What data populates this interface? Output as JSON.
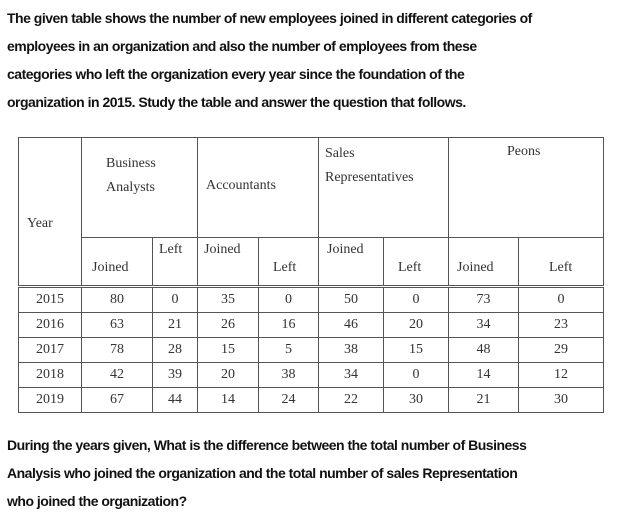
{
  "intro_lines": [
    "The given table shows the number of new employees joined in different categories of",
    "employees in an organization and also the number of employees from these",
    "categories who left the organization every year since the foundation of the",
    "organization in 2015. Study the table and answer the question that follows."
  ],
  "table": {
    "year_header": "Year",
    "groups": [
      "Business Analysts",
      "Accountants",
      "Sales Representatives",
      "Peons"
    ],
    "sub_headers": [
      "Joined",
      "Left",
      "Joined",
      "Left",
      "Joined",
      "Left",
      "Joined",
      "Left"
    ],
    "rows": [
      [
        "2015",
        "80",
        "0",
        "35",
        "0",
        "50",
        "0",
        "73",
        "0"
      ],
      [
        "2016",
        "63",
        "21",
        "26",
        "16",
        "46",
        "20",
        "34",
        "23"
      ],
      [
        "2017",
        "78",
        "28",
        "15",
        "5",
        "38",
        "15",
        "48",
        "29"
      ],
      [
        "2018",
        "42",
        "39",
        "20",
        "38",
        "34",
        "0",
        "14",
        "12"
      ],
      [
        "2019",
        "67",
        "44",
        "14",
        "24",
        "22",
        "30",
        "21",
        "30"
      ]
    ]
  },
  "question_lines": [
    "During the years given, What is the difference between the total number of Business",
    "Analysis who joined the organization and the total number of sales Representation",
    "who joined the organization?"
  ]
}
